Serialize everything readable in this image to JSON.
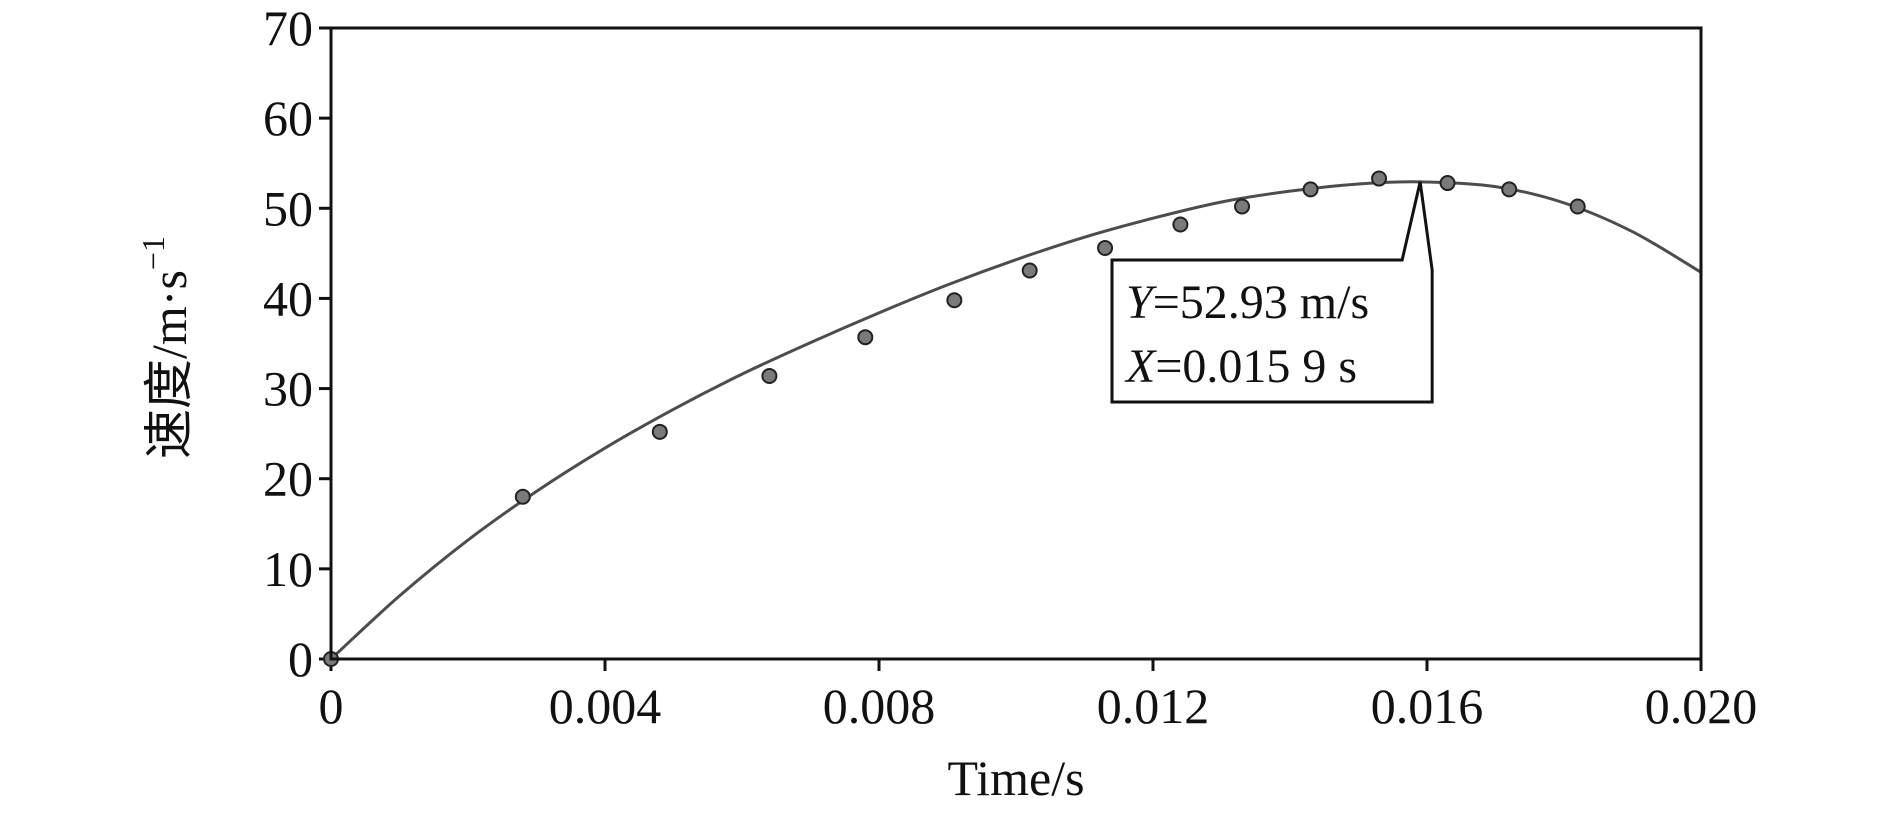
{
  "chart_data": {
    "type": "scatter",
    "xlabel": "Time/s",
    "ylabel": "速度/m·s",
    "ylabel_superscript": "−1",
    "xlim": [
      0,
      0.02
    ],
    "ylim": [
      0,
      70
    ],
    "x_ticks": [
      0,
      0.004,
      0.008,
      0.012,
      0.016,
      0.02
    ],
    "x_tick_labels": [
      "0",
      "0.004",
      "0.008",
      "0.012",
      "0.016",
      "0.020"
    ],
    "y_ticks": [
      0,
      10,
      20,
      30,
      40,
      50,
      60,
      70
    ],
    "y_tick_labels": [
      "0",
      "10",
      "20",
      "30",
      "40",
      "50",
      "60",
      "70"
    ],
    "grid": false,
    "series": [
      {
        "kind": "points",
        "x": [
          0,
          0.0028,
          0.0048,
          0.0064,
          0.0078,
          0.0091,
          0.0102,
          0.0113,
          0.0124,
          0.0133,
          0.0143,
          0.0153,
          0.0163,
          0.0172,
          0.0182
        ],
        "y": [
          0,
          18.0,
          25.2,
          31.4,
          35.7,
          39.8,
          43.1,
          45.6,
          48.2,
          50.2,
          52.1,
          53.3,
          52.8,
          52.1,
          50.2
        ]
      },
      {
        "kind": "fit-curve",
        "x": [
          0,
          0.001,
          0.002,
          0.003,
          0.004,
          0.005,
          0.006,
          0.007,
          0.008,
          0.009,
          0.01,
          0.011,
          0.012,
          0.013,
          0.014,
          0.015,
          0.0159,
          0.017,
          0.018,
          0.019,
          0.02
        ],
        "y": [
          0,
          7.0,
          13.2,
          18.6,
          23.4,
          27.7,
          31.6,
          35.1,
          38.4,
          41.5,
          44.3,
          46.8,
          48.9,
          50.7,
          51.9,
          52.7,
          52.93,
          52.4,
          50.6,
          47.4,
          42.9
        ]
      }
    ],
    "annotation": {
      "x": 0.0159,
      "y": 52.93,
      "line1_var": "Y",
      "line1_rest": "=52.93 m/s",
      "line2_var": "X",
      "line2_rest": "=0.015 9 s"
    }
  }
}
